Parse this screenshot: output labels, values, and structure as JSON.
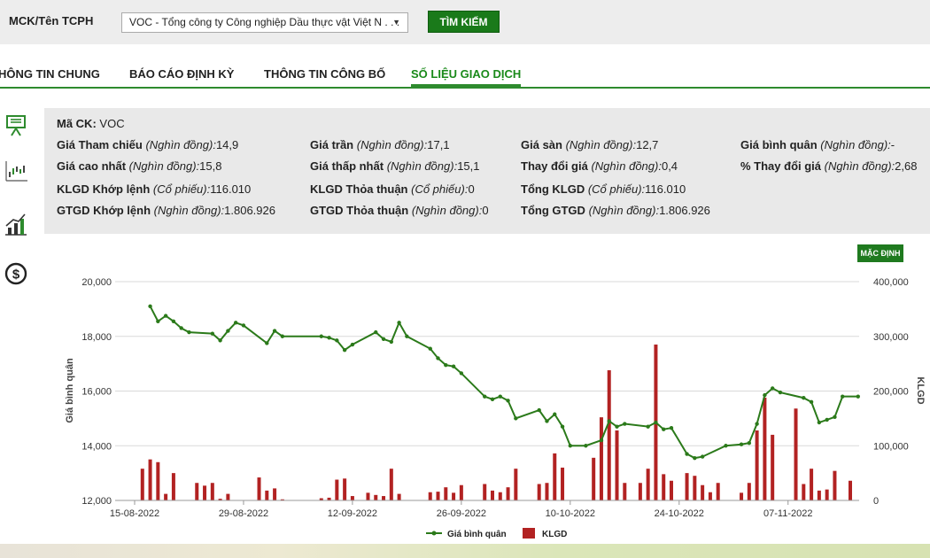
{
  "search": {
    "label": "MCK/Tên TCPH",
    "selected": "VOC - Tổng công ty Công nghiệp Dầu thực vật Việt N . . .",
    "button": "TÌM KIẾM"
  },
  "tabs": [
    "HÔNG TIN CHUNG",
    "BÁO CÁO ĐỊNH KỲ",
    "THÔNG TIN CÔNG BỐ",
    "SỐ LIỆU GIAO DỊCH"
  ],
  "sidebar_icons": [
    "board-icon",
    "candlestick-icon",
    "bar-growth-icon",
    "dollar-icon"
  ],
  "stock": {
    "code_label": "Mã CK:",
    "code": "VOC",
    "ref_label": "Giá Tham chiếu",
    "ref_unit": "(Nghìn đồng):",
    "ref": "14,9",
    "ceil_label": "Giá trần",
    "ceil_unit": "(Nghìn đồng):",
    "ceil": "17,1",
    "floor_label": "Giá sàn",
    "floor_unit": "(Nghìn đồng):",
    "floor": "12,7",
    "avg_label": "Giá bình quân",
    "avg_unit": "(Nghìn đồng):",
    "avg": "-",
    "high_label": "Giá cao nhất",
    "high_unit": "(Nghìn đồng):",
    "high": "15,8",
    "low_label": "Giá thấp nhất",
    "low_unit": "(Nghìn đồng):",
    "low": "15,1",
    "chg_label": "Thay đổi giá",
    "chg_unit": "(Nghìn đồng):",
    "chg": "0,4",
    "pct_label": "% Thay đổi giá",
    "pct_unit": "(Nghìn đồng):",
    "pct": "2,68",
    "vol_match_label": "KLGD Khớp lệnh",
    "vol_match_unit": "(Cổ phiếu):",
    "vol_match": "116.010",
    "vol_deal_label": "KLGD Thỏa thuận",
    "vol_deal_unit": "(Cổ phiếu):",
    "vol_deal": "0",
    "vol_total_label": "Tổng KLGD",
    "vol_total_unit": "(Cổ phiếu):",
    "vol_total": "116.010",
    "val_match_label": "GTGD Khớp lệnh",
    "val_match_unit": "(Nghìn đồng):",
    "val_match": "1.806.926",
    "val_deal_label": "GTGD Thỏa thuận",
    "val_deal_unit": "(Nghìn đồng):",
    "val_deal": "0",
    "val_total_label": "Tổng GTGD",
    "val_total_unit": "(Nghìn đồng):",
    "val_total": "1.806.926"
  },
  "default_button": "MẶC ĐỊNH",
  "colors": {
    "line": "#2b7a1a",
    "bar": "#b22222",
    "accent": "#1a8a1a"
  },
  "chart_data": {
    "type": "line+bar",
    "ylabel_left": "Giá bình quân",
    "ylabel_right": "KLGD",
    "left_ticks": [
      "20,000",
      "18,000",
      "16,000",
      "14,000",
      "12,000"
    ],
    "left_range": [
      12000,
      20000
    ],
    "right_ticks": [
      "400,000",
      "300,000",
      "200,000",
      "100,000",
      "0"
    ],
    "right_range": [
      0,
      400000
    ],
    "x_tick_labels": [
      "15-08-2022",
      "29-08-2022",
      "12-09-2022",
      "26-09-2022",
      "10-10-2022",
      "24-10-2022",
      "07-11-2022"
    ],
    "x_tick_index": [
      0,
      14,
      28,
      42,
      56,
      70,
      84
    ],
    "x_count": 93,
    "legend": [
      "Giá bình quân",
      "KLGD"
    ],
    "price": [
      [
        2,
        19100
      ],
      [
        3,
        18550
      ],
      [
        4,
        18750
      ],
      [
        5,
        18550
      ],
      [
        6,
        18300
      ],
      [
        7,
        18150
      ],
      [
        10,
        18100
      ],
      [
        11,
        17850
      ],
      [
        12,
        18200
      ],
      [
        13,
        18500
      ],
      [
        14,
        18400
      ],
      [
        17,
        17750
      ],
      [
        18,
        18200
      ],
      [
        19,
        18000
      ],
      [
        24,
        18000
      ],
      [
        25,
        17950
      ],
      [
        26,
        17850
      ],
      [
        27,
        17500
      ],
      [
        28,
        17700
      ],
      [
        31,
        18150
      ],
      [
        32,
        17900
      ],
      [
        33,
        17800
      ],
      [
        34,
        18500
      ],
      [
        35,
        18000
      ],
      [
        38,
        17550
      ],
      [
        39,
        17200
      ],
      [
        40,
        16950
      ],
      [
        41,
        16900
      ],
      [
        42,
        16650
      ],
      [
        45,
        15800
      ],
      [
        46,
        15700
      ],
      [
        47,
        15800
      ],
      [
        48,
        15650
      ],
      [
        49,
        15000
      ],
      [
        52,
        15300
      ],
      [
        53,
        14900
      ],
      [
        54,
        15150
      ],
      [
        55,
        14700
      ],
      [
        56,
        14000
      ],
      [
        58,
        14000
      ],
      [
        60,
        14200
      ],
      [
        61,
        14900
      ],
      [
        62,
        14700
      ],
      [
        63,
        14800
      ],
      [
        66,
        14700
      ],
      [
        67,
        14850
      ],
      [
        68,
        14600
      ],
      [
        69,
        14650
      ],
      [
        71,
        13700
      ],
      [
        72,
        13550
      ],
      [
        73,
        13600
      ],
      [
        76,
        14000
      ],
      [
        78,
        14050
      ],
      [
        79,
        14100
      ],
      [
        80,
        14800
      ],
      [
        81,
        15850
      ],
      [
        82,
        16100
      ],
      [
        83,
        15950
      ],
      [
        86,
        15750
      ],
      [
        87,
        15600
      ],
      [
        88,
        14850
      ],
      [
        89,
        14950
      ],
      [
        90,
        15050
      ],
      [
        91,
        15800
      ],
      [
        93,
        15800
      ]
    ],
    "volume": [
      [
        1,
        58000
      ],
      [
        2,
        75000
      ],
      [
        3,
        70000
      ],
      [
        4,
        12000
      ],
      [
        5,
        50000
      ],
      [
        8,
        32000
      ],
      [
        9,
        27000
      ],
      [
        10,
        32000
      ],
      [
        11,
        3000
      ],
      [
        12,
        12000
      ],
      [
        16,
        42000
      ],
      [
        17,
        18000
      ],
      [
        18,
        22000
      ],
      [
        19,
        2000
      ],
      [
        24,
        4000
      ],
      [
        25,
        5000
      ],
      [
        26,
        38000
      ],
      [
        27,
        40000
      ],
      [
        28,
        8000
      ],
      [
        30,
        14000
      ],
      [
        31,
        10000
      ],
      [
        32,
        8000
      ],
      [
        33,
        58000
      ],
      [
        34,
        12000
      ],
      [
        38,
        15000
      ],
      [
        39,
        16000
      ],
      [
        40,
        24000
      ],
      [
        41,
        14000
      ],
      [
        42,
        28000
      ],
      [
        45,
        30000
      ],
      [
        46,
        18000
      ],
      [
        47,
        15000
      ],
      [
        48,
        24000
      ],
      [
        49,
        58000
      ],
      [
        52,
        30000
      ],
      [
        53,
        32000
      ],
      [
        54,
        86000
      ],
      [
        55,
        60000
      ],
      [
        57,
        0
      ],
      [
        59,
        78000
      ],
      [
        60,
        152000
      ],
      [
        61,
        238000
      ],
      [
        62,
        128000
      ],
      [
        63,
        32000
      ],
      [
        65,
        32000
      ],
      [
        66,
        58000
      ],
      [
        67,
        285000
      ],
      [
        68,
        48000
      ],
      [
        69,
        36000
      ],
      [
        71,
        50000
      ],
      [
        72,
        45000
      ],
      [
        73,
        28000
      ],
      [
        74,
        15000
      ],
      [
        75,
        32000
      ],
      [
        78,
        14000
      ],
      [
        79,
        32000
      ],
      [
        80,
        128000
      ],
      [
        81,
        188000
      ],
      [
        82,
        120000
      ],
      [
        85,
        168000
      ],
      [
        86,
        30000
      ],
      [
        87,
        58000
      ],
      [
        88,
        18000
      ],
      [
        89,
        20000
      ],
      [
        90,
        54000
      ],
      [
        92,
        36000
      ]
    ]
  }
}
